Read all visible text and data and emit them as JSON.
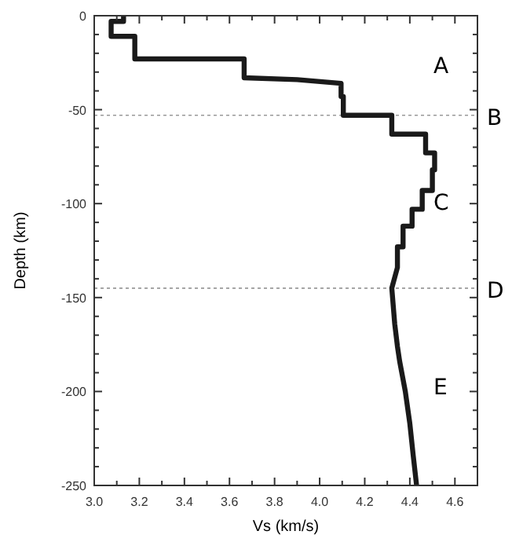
{
  "chart_data": {
    "type": "line",
    "xlabel": "Vs (km/s)",
    "ylabel": "Depth (km)",
    "xlim": [
      3.0,
      4.7
    ],
    "ylim": [
      -250,
      0
    ],
    "xticks": [
      {
        "value": 3.0,
        "label": "3.0"
      },
      {
        "value": 3.1,
        "label": null
      },
      {
        "value": 3.2,
        "label": "3.2"
      },
      {
        "value": 3.3,
        "label": null
      },
      {
        "value": 3.4,
        "label": "3.4"
      },
      {
        "value": 3.5,
        "label": null
      },
      {
        "value": 3.6,
        "label": "3.6"
      },
      {
        "value": 3.7,
        "label": null
      },
      {
        "value": 3.8,
        "label": "3.8"
      },
      {
        "value": 3.9,
        "label": null
      },
      {
        "value": 4.0,
        "label": "4.0"
      },
      {
        "value": 4.1,
        "label": null
      },
      {
        "value": 4.2,
        "label": "4.2"
      },
      {
        "value": 4.3,
        "label": null
      },
      {
        "value": 4.4,
        "label": "4.4"
      },
      {
        "value": 4.5,
        "label": null
      },
      {
        "value": 4.6,
        "label": "4.6"
      }
    ],
    "yticks": [
      0,
      {
        "value": -10,
        "label": null
      },
      {
        "value": -20,
        "label": null
      },
      {
        "value": -30,
        "label": null
      },
      {
        "value": -40,
        "label": null
      },
      -50,
      {
        "value": -60,
        "label": null
      },
      {
        "value": -70,
        "label": null
      },
      {
        "value": -80,
        "label": null
      },
      {
        "value": -90,
        "label": null
      },
      -100,
      {
        "value": -110,
        "label": null
      },
      {
        "value": -120,
        "label": null
      },
      {
        "value": -130,
        "label": null
      },
      {
        "value": -140,
        "label": null
      },
      -150,
      {
        "value": -160,
        "label": null
      },
      {
        "value": -170,
        "label": null
      },
      {
        "value": -180,
        "label": null
      },
      {
        "value": -190,
        "label": null
      },
      -200,
      {
        "value": -210,
        "label": null
      },
      {
        "value": -220,
        "label": null
      },
      {
        "value": -230,
        "label": null
      },
      {
        "value": -240,
        "label": null
      },
      -250
    ],
    "series": [
      {
        "color": "#1a1a1a",
        "x": [
          3.13,
          3.13,
          3.075,
          3.075,
          3.18,
          3.18,
          3.665,
          3.665,
          3.9,
          4.095,
          4.095,
          4.105,
          4.105,
          4.32,
          4.32,
          4.47,
          4.47,
          4.51,
          4.51,
          4.5,
          4.5,
          4.455,
          4.455,
          4.41,
          4.41,
          4.37,
          4.37,
          4.345,
          4.345,
          4.32,
          4.333,
          4.345,
          4.355,
          4.38,
          4.4,
          4.415,
          4.43
        ],
        "values": [
          0,
          -3,
          -3,
          -11,
          -11,
          -23,
          -23,
          -33,
          -34,
          -36,
          -43,
          -43,
          -53,
          -53,
          -63,
          -63,
          -73,
          -73,
          -82,
          -82,
          -93,
          -93,
          -103,
          -103,
          -112,
          -112,
          -123,
          -123,
          -134,
          -145,
          -164,
          -176,
          -184,
          -200,
          -217,
          -234,
          -250
        ]
      }
    ],
    "ref_lines": [
      {
        "axis": "y",
        "value": -53,
        "label": "B",
        "color": "#999999",
        "line_style": "dotted"
      },
      {
        "axis": "y",
        "value": -145,
        "label": "D",
        "color": "#999999",
        "line_style": "dotted"
      }
    ],
    "annotations": [
      "A",
      "C",
      "E"
    ],
    "grid": false,
    "marker": "none",
    "line_style": "solid"
  }
}
